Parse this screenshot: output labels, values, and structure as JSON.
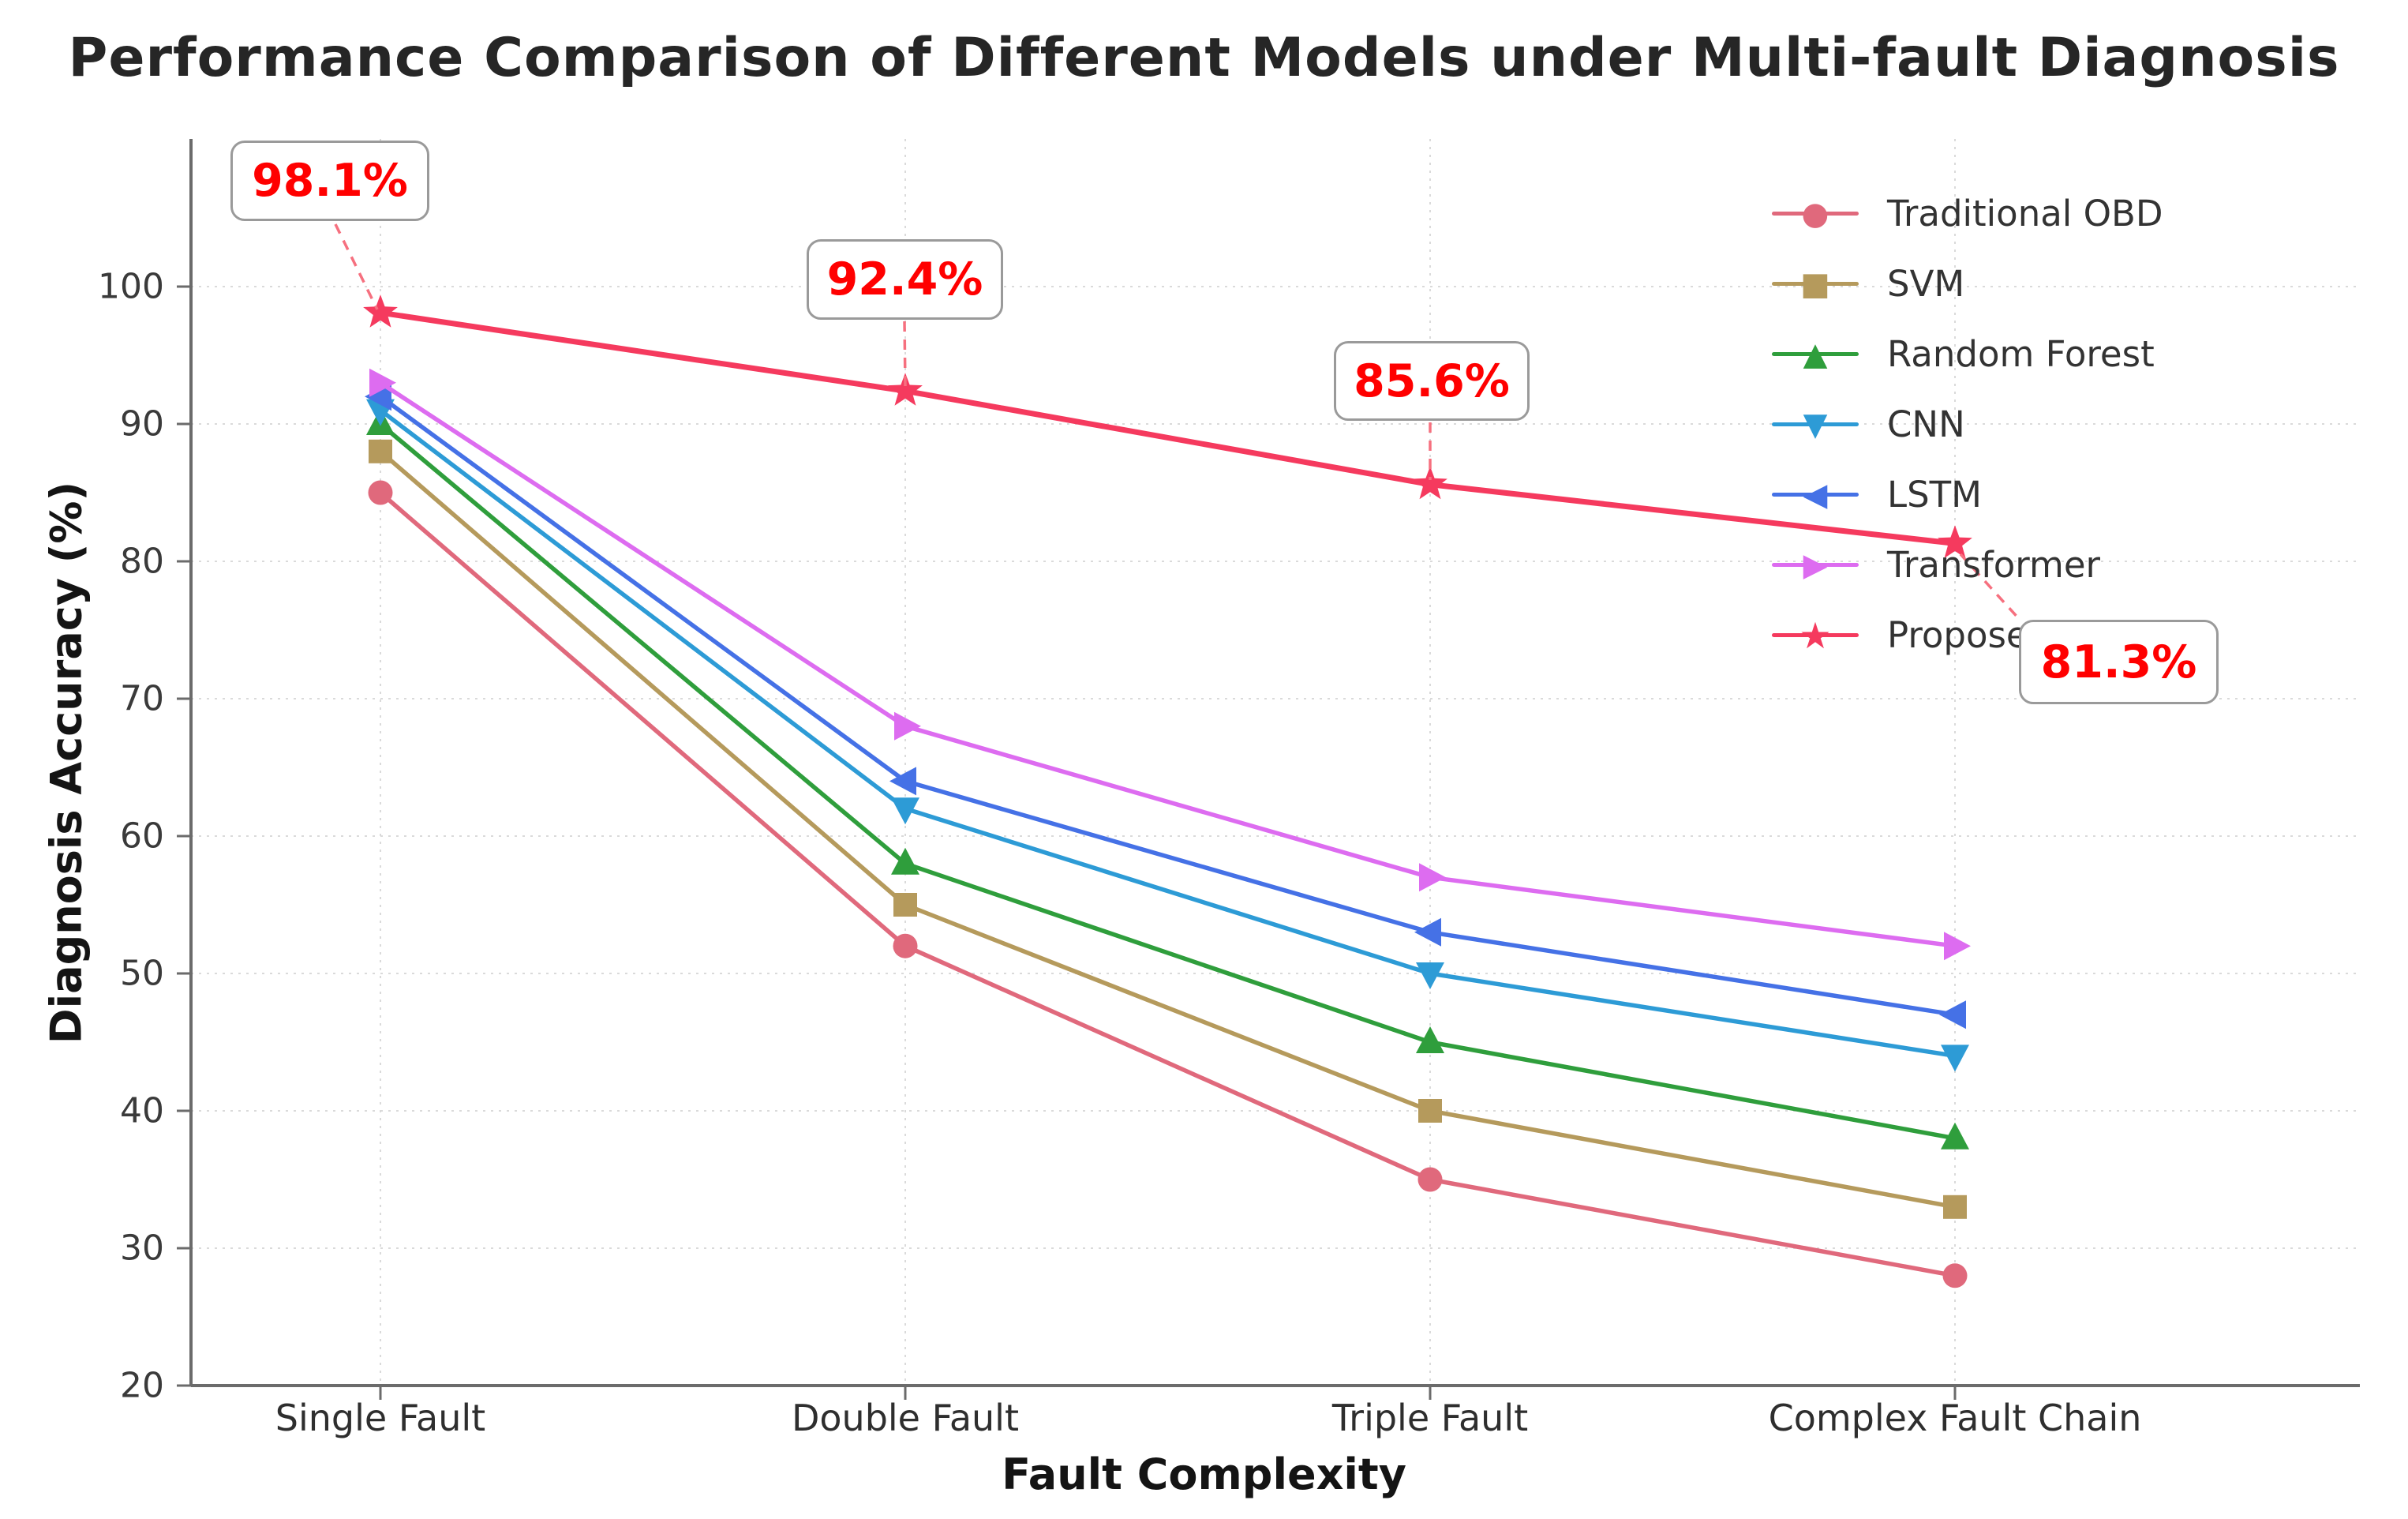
{
  "chart_data": {
    "type": "line",
    "title": "Performance Comparison of Different Models under Multi-fault Diagnosis",
    "xlabel": "Fault Complexity",
    "ylabel": "Diagnosis Accuracy (%)",
    "categories": [
      "Single Fault",
      "Double Fault",
      "Triple Fault",
      "Complex Fault Chain"
    ],
    "yticks": [
      20,
      30,
      40,
      50,
      60,
      70,
      80,
      90,
      100
    ],
    "ylim": [
      20,
      111
    ],
    "grid": true,
    "legend_position": "upper right",
    "series": [
      {
        "name": "Traditional OBD",
        "marker": "circle",
        "color": "#e0697c",
        "values": [
          85,
          52,
          35,
          28
        ]
      },
      {
        "name": "SVM",
        "marker": "square",
        "color": "#b59a5c",
        "values": [
          88,
          55,
          40,
          33
        ]
      },
      {
        "name": "Random Forest",
        "marker": "triangle-up",
        "color": "#2f9e3c",
        "values": [
          90,
          58,
          45,
          38
        ]
      },
      {
        "name": "CNN",
        "marker": "triangle-down",
        "color": "#2d9bd6",
        "values": [
          91,
          62,
          50,
          44
        ]
      },
      {
        "name": "LSTM",
        "marker": "triangle-left",
        "color": "#4571e6",
        "values": [
          92,
          64,
          53,
          47
        ]
      },
      {
        "name": "Transformer",
        "marker": "triangle-right",
        "color": "#dd6cf0",
        "values": [
          93,
          68,
          57,
          52
        ]
      },
      {
        "name": "Proposed Method",
        "marker": "star",
        "color": "#f53a5e",
        "values": [
          98.1,
          92.4,
          85.6,
          81.3
        ]
      }
    ],
    "annotations": [
      {
        "label": "98.1%",
        "series": "Proposed Method",
        "category": "Single Fault",
        "value": 98.1
      },
      {
        "label": "92.4%",
        "series": "Proposed Method",
        "category": "Double Fault",
        "value": 92.4
      },
      {
        "label": "85.6%",
        "series": "Proposed Method",
        "category": "Triple Fault",
        "value": 85.6
      },
      {
        "label": "81.3%",
        "series": "Proposed Method",
        "category": "Complex Fault Chain",
        "value": 81.3
      }
    ],
    "annotation_text_color": "#ff0000",
    "annotation_connector_color": "#f6707f",
    "axis_color": "#6b6b6b",
    "grid_color": "#dadada",
    "tick_label_color": "#3a3a3a"
  }
}
